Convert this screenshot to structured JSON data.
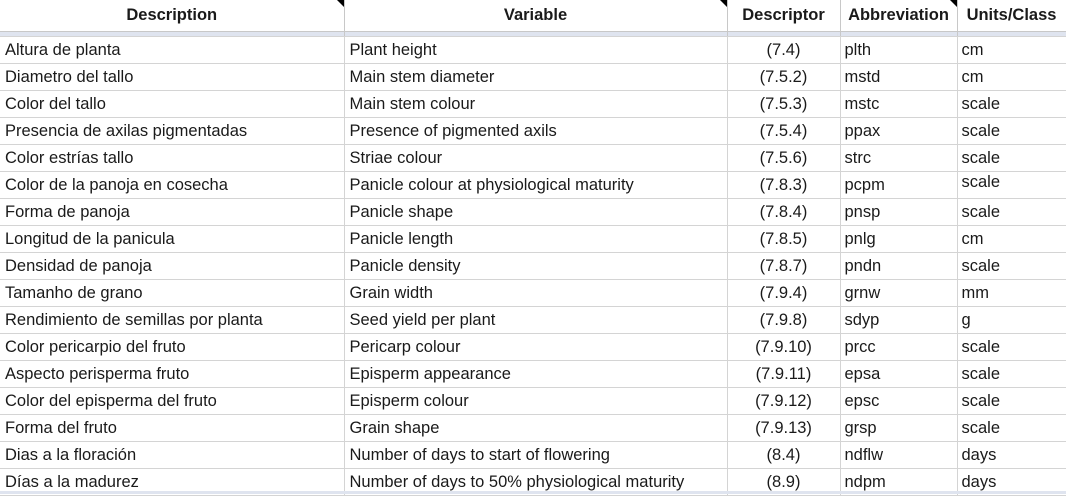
{
  "columns": [
    "Description",
    "Variable",
    "Descriptor",
    "Abbreviation",
    "Units/Class"
  ],
  "rows": [
    [
      "Altura de planta",
      "Plant height",
      "(7.4)",
      "plth",
      "cm"
    ],
    [
      "Diametro del tallo",
      "Main stem diameter",
      "(7.5.2)",
      "mstd",
      "cm"
    ],
    [
      "Color del tallo",
      "Main stem colour",
      "(7.5.3)",
      "mstc",
      "scale"
    ],
    [
      "Presencia de axilas pigmentadas",
      "Presence of pigmented axils",
      "(7.5.4)",
      "ppax",
      "scale"
    ],
    [
      "Color estrías tallo",
      "Striae colour",
      "(7.5.6)",
      "strc",
      "scale"
    ],
    [
      "Color de la panoja en cosecha",
      "Panicle colour at physiological maturity",
      "(7.8.3)",
      "pcpm",
      "scale"
    ],
    [
      "Forma de panoja",
      "Panicle shape",
      "(7.8.4)",
      "pnsp",
      "scale"
    ],
    [
      "Longitud de la panicula",
      "Panicle length",
      "(7.8.5)",
      "pnlg",
      "cm"
    ],
    [
      "Densidad de panoja",
      "Panicle density",
      "(7.8.7)",
      "pndn",
      "scale"
    ],
    [
      "Tamanho de grano",
      "Grain width",
      "(7.9.4)",
      "grnw",
      "mm"
    ],
    [
      "Rendimiento de semillas por planta",
      "Seed yield per plant",
      "(7.9.8)",
      "sdyp",
      "g"
    ],
    [
      "Color pericarpio del fruto",
      "Pericarp colour",
      "(7.9.10)",
      "prcc",
      "scale"
    ],
    [
      "Aspecto perisperma fruto",
      "Episperm appearance",
      "(7.9.11)",
      "epsa",
      "scale"
    ],
    [
      "Color del episperma del fruto",
      "Episperm colour",
      "(7.9.12)",
      "epsc",
      "scale"
    ],
    [
      "Forma del fruto",
      "Grain shape",
      "(7.9.13)",
      "grsp",
      "scale"
    ],
    [
      "Dias a la floración",
      "Number of days to start of flowering",
      "(8.4)",
      "ndflw",
      "days"
    ],
    [
      "Días a la madurez",
      "Number of days to 50% physiological maturity",
      "(8.9)",
      "ndpm",
      "days"
    ]
  ]
}
